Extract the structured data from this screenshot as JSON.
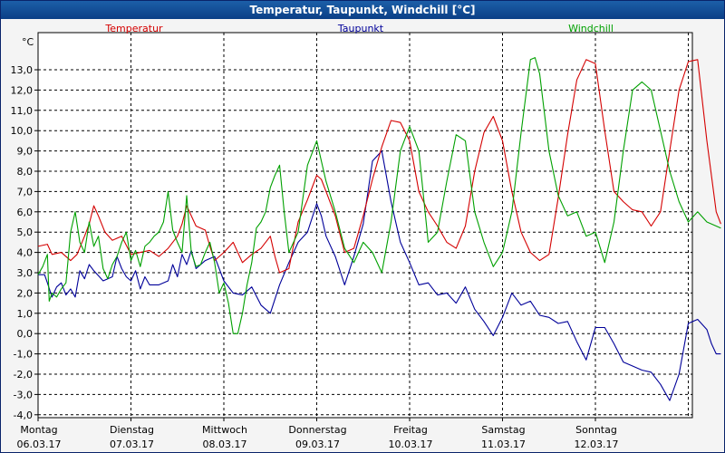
{
  "window_title": "Temperatur, Taupunkt, Windchill [°C]",
  "chart_data": {
    "type": "line",
    "title": "Temperatur, Taupunkt, Windchill [°C]",
    "unit_label": "°C",
    "ylim": [
      -4.0,
      13.0
    ],
    "ytick_labels": [
      "13,0",
      "12,0",
      "11,0",
      "10,0",
      "9,0",
      "8,0",
      "7,0",
      "6,0",
      "5,0",
      "4,0",
      "3,0",
      "2,0",
      "1,0",
      "0,0",
      "-1,0",
      "-2,0",
      "-3,0",
      "-4,0"
    ],
    "xlim": [
      0,
      7.35
    ],
    "x_unit": "days since 06.03.17 00:00",
    "days": [
      {
        "name": "Montag",
        "date": "06.03.17"
      },
      {
        "name": "Dienstag",
        "date": "07.03.17"
      },
      {
        "name": "Mittwoch",
        "date": "08.03.17"
      },
      {
        "name": "Donnerstag",
        "date": "09.03.17"
      },
      {
        "name": "Freitag",
        "date": "10.03.17"
      },
      {
        "name": "Samstag",
        "date": "11.03.17"
      },
      {
        "name": "Sonntag",
        "date": "12.03.17"
      }
    ],
    "grid": true,
    "series": [
      {
        "name": "Temperatur",
        "color": "#d40000",
        "x": [
          0,
          0.1,
          0.15,
          0.25,
          0.35,
          0.42,
          0.5,
          0.55,
          0.6,
          0.65,
          0.72,
          0.8,
          0.9,
          1.0,
          1.1,
          1.2,
          1.3,
          1.4,
          1.5,
          1.55,
          1.6,
          1.7,
          1.8,
          1.85,
          1.9,
          2.0,
          2.1,
          2.2,
          2.3,
          2.4,
          2.5,
          2.55,
          2.6,
          2.7,
          2.8,
          2.9,
          3.0,
          3.05,
          3.1,
          3.2,
          3.3,
          3.4,
          3.5,
          3.6,
          3.7,
          3.8,
          3.9,
          4.0,
          4.1,
          4.2,
          4.3,
          4.4,
          4.5,
          4.6,
          4.7,
          4.8,
          4.9,
          5.0,
          5.1,
          5.2,
          5.3,
          5.35,
          5.4,
          5.5,
          5.6,
          5.7,
          5.8,
          5.9,
          6.0,
          6.1,
          6.2,
          6.3,
          6.4,
          6.5,
          6.6,
          6.7,
          6.8,
          6.9,
          7.0,
          7.1,
          7.2,
          7.3,
          7.35
        ],
        "values": [
          4.3,
          4.4,
          3.9,
          4.0,
          3.6,
          3.9,
          4.8,
          5.4,
          6.3,
          5.8,
          5.0,
          4.6,
          4.8,
          3.9,
          4.0,
          4.1,
          3.8,
          4.2,
          4.8,
          5.4,
          6.3,
          5.3,
          5.1,
          4.3,
          3.6,
          4.0,
          4.5,
          3.5,
          3.9,
          4.2,
          4.8,
          3.8,
          3.0,
          3.2,
          5.5,
          6.6,
          7.8,
          7.6,
          7.0,
          5.8,
          4.0,
          4.2,
          5.8,
          7.6,
          9.2,
          10.5,
          10.4,
          9.5,
          7.0,
          6.0,
          5.3,
          4.5,
          4.2,
          5.3,
          8.0,
          9.9,
          10.7,
          9.5,
          7.0,
          5.0,
          4.0,
          3.8,
          3.6,
          3.9,
          6.7,
          9.8,
          12.5,
          13.5,
          13.3,
          10.0,
          7.0,
          6.5,
          6.1,
          6.0,
          5.3,
          6.0,
          9.0,
          12.0,
          13.4,
          13.5,
          9.5,
          6.0,
          5.4
        ]
      },
      {
        "name": "Taupunkt",
        "color": "#000099",
        "x": [
          0,
          0.07,
          0.1,
          0.15,
          0.2,
          0.25,
          0.3,
          0.35,
          0.4,
          0.45,
          0.5,
          0.55,
          0.6,
          0.7,
          0.8,
          0.85,
          0.9,
          0.95,
          1.0,
          1.05,
          1.1,
          1.15,
          1.2,
          1.3,
          1.4,
          1.45,
          1.5,
          1.55,
          1.6,
          1.65,
          1.7,
          1.8,
          1.9,
          2.0,
          2.05,
          2.1,
          2.2,
          2.3,
          2.4,
          2.5,
          2.6,
          2.7,
          2.8,
          2.9,
          3.0,
          3.05,
          3.1,
          3.2,
          3.3,
          3.4,
          3.5,
          3.6,
          3.7,
          3.8,
          3.9,
          4.0,
          4.1,
          4.2,
          4.3,
          4.4,
          4.5,
          4.6,
          4.7,
          4.8,
          4.9,
          5.0,
          5.1,
          5.2,
          5.3,
          5.4,
          5.5,
          5.6,
          5.7,
          5.8,
          5.9,
          6.0,
          6.1,
          6.2,
          6.3,
          6.4,
          6.5,
          6.6,
          6.7,
          6.8,
          6.9,
          7.0,
          7.1,
          7.2,
          7.25,
          7.3,
          7.35
        ],
        "values": [
          2.9,
          2.9,
          2.5,
          1.8,
          2.3,
          2.5,
          1.9,
          2.2,
          1.8,
          3.1,
          2.7,
          3.4,
          3.1,
          2.6,
          2.8,
          3.8,
          3.2,
          2.8,
          2.6,
          3.1,
          2.2,
          2.8,
          2.4,
          2.4,
          2.6,
          3.4,
          2.8,
          3.9,
          3.4,
          4.1,
          3.2,
          3.6,
          3.8,
          2.6,
          2.3,
          2.0,
          1.9,
          2.3,
          1.4,
          1.0,
          2.4,
          3.5,
          4.5,
          5.0,
          6.4,
          5.8,
          4.8,
          3.8,
          2.4,
          3.8,
          5.4,
          8.5,
          9.0,
          6.5,
          4.5,
          3.5,
          2.4,
          2.5,
          1.9,
          2.0,
          1.5,
          2.3,
          1.2,
          0.6,
          -0.1,
          0.8,
          2.0,
          1.4,
          1.6,
          0.9,
          0.8,
          0.5,
          0.6,
          -0.4,
          -1.3,
          0.3,
          0.3,
          -0.5,
          -1.4,
          -1.6,
          -1.8,
          -1.9,
          -2.5,
          -3.3,
          -2.0,
          0.5,
          0.7,
          0.2,
          -0.5,
          -1.0,
          -1.0
        ]
      },
      {
        "name": "Windchill",
        "color": "#00a000",
        "x": [
          0,
          0.05,
          0.1,
          0.12,
          0.15,
          0.2,
          0.25,
          0.3,
          0.35,
          0.4,
          0.45,
          0.5,
          0.55,
          0.6,
          0.65,
          0.7,
          0.75,
          0.8,
          0.85,
          0.9,
          0.95,
          1.0,
          1.05,
          1.1,
          1.15,
          1.2,
          1.25,
          1.3,
          1.35,
          1.4,
          1.45,
          1.5,
          1.55,
          1.6,
          1.65,
          1.7,
          1.75,
          1.8,
          1.85,
          1.9,
          1.95,
          2.0,
          2.05,
          2.1,
          2.15,
          2.2,
          2.25,
          2.3,
          2.35,
          2.4,
          2.45,
          2.5,
          2.55,
          2.6,
          2.65,
          2.7,
          2.8,
          2.9,
          3.0,
          3.05,
          3.1,
          3.2,
          3.3,
          3.4,
          3.5,
          3.6,
          3.7,
          3.8,
          3.9,
          4.0,
          4.1,
          4.2,
          4.3,
          4.4,
          4.5,
          4.6,
          4.7,
          4.8,
          4.9,
          5.0,
          5.1,
          5.2,
          5.3,
          5.35,
          5.4,
          5.5,
          5.6,
          5.7,
          5.8,
          5.9,
          6.0,
          6.1,
          6.2,
          6.3,
          6.4,
          6.5,
          6.6,
          6.7,
          6.8,
          6.9,
          7.0,
          7.1,
          7.2,
          7.3,
          7.35
        ],
        "values": [
          2.9,
          3.3,
          3.9,
          1.6,
          2.0,
          1.8,
          2.2,
          2.5,
          5.0,
          6.0,
          4.5,
          4.0,
          5.5,
          4.3,
          4.8,
          3.2,
          2.7,
          3.4,
          3.8,
          4.5,
          5.0,
          3.6,
          4.1,
          3.3,
          4.3,
          4.5,
          4.8,
          5.0,
          5.5,
          7.0,
          5.1,
          4.5,
          4.0,
          6.8,
          4.0,
          3.3,
          3.4,
          4.0,
          4.5,
          3.5,
          2.0,
          2.5,
          1.5,
          0.0,
          0.0,
          1.0,
          2.4,
          3.5,
          5.2,
          5.5,
          6.0,
          7.2,
          7.8,
          8.3,
          6.0,
          4.0,
          5.0,
          8.3,
          9.5,
          8.5,
          7.5,
          6.0,
          4.2,
          3.5,
          4.5,
          4.0,
          3.0,
          5.5,
          9.0,
          10.2,
          9.0,
          4.5,
          5.0,
          7.5,
          9.8,
          9.5,
          6.0,
          4.5,
          3.3,
          4.0,
          6.0,
          9.9,
          13.5,
          13.6,
          12.8,
          9.0,
          6.8,
          5.8,
          6.0,
          4.8,
          5.0,
          3.5,
          5.5,
          9.0,
          12.0,
          12.4,
          12.0,
          10.0,
          8.0,
          6.5,
          5.5,
          6.0,
          5.5,
          5.3,
          5.2
        ]
      }
    ]
  }
}
